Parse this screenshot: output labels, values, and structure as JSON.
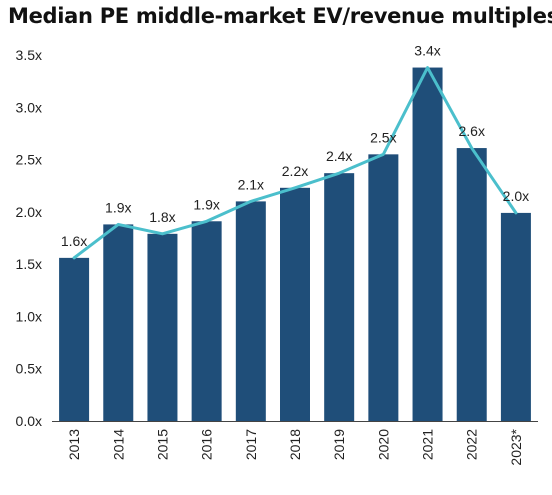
{
  "chart_data": {
    "type": "bar",
    "title": "Median PE middle-market EV/revenue multiples",
    "xlabel": "",
    "ylabel": "",
    "categories": [
      "2013",
      "2014",
      "2015",
      "2016",
      "2017",
      "2018",
      "2019",
      "2020",
      "2021",
      "2022",
      "2023*"
    ],
    "series": [
      {
        "type": "bar",
        "values": [
          1.56,
          1.88,
          1.79,
          1.91,
          2.1,
          2.23,
          2.37,
          2.55,
          3.38,
          2.61,
          1.99
        ]
      },
      {
        "type": "line",
        "values": [
          1.56,
          1.88,
          1.79,
          1.91,
          2.1,
          2.23,
          2.37,
          2.55,
          3.38,
          2.61,
          1.99
        ]
      }
    ],
    "data_labels": [
      "1.6x",
      "1.9x",
      "1.8x",
      "1.9x",
      "2.1x",
      "2.2x",
      "2.4x",
      "2.5x",
      "3.4x",
      "2.6x",
      "2.0x"
    ],
    "yticks": [
      "0.0x",
      "0.5x",
      "1.0x",
      "1.5x",
      "2.0x",
      "2.5x",
      "3.0x",
      "3.5x"
    ],
    "ylim": [
      0,
      3.5
    ],
    "grid": false,
    "legend": "none",
    "colors": {
      "bar": "#1f4e79",
      "line": "#4bbfcc",
      "axis": "#444444"
    }
  }
}
